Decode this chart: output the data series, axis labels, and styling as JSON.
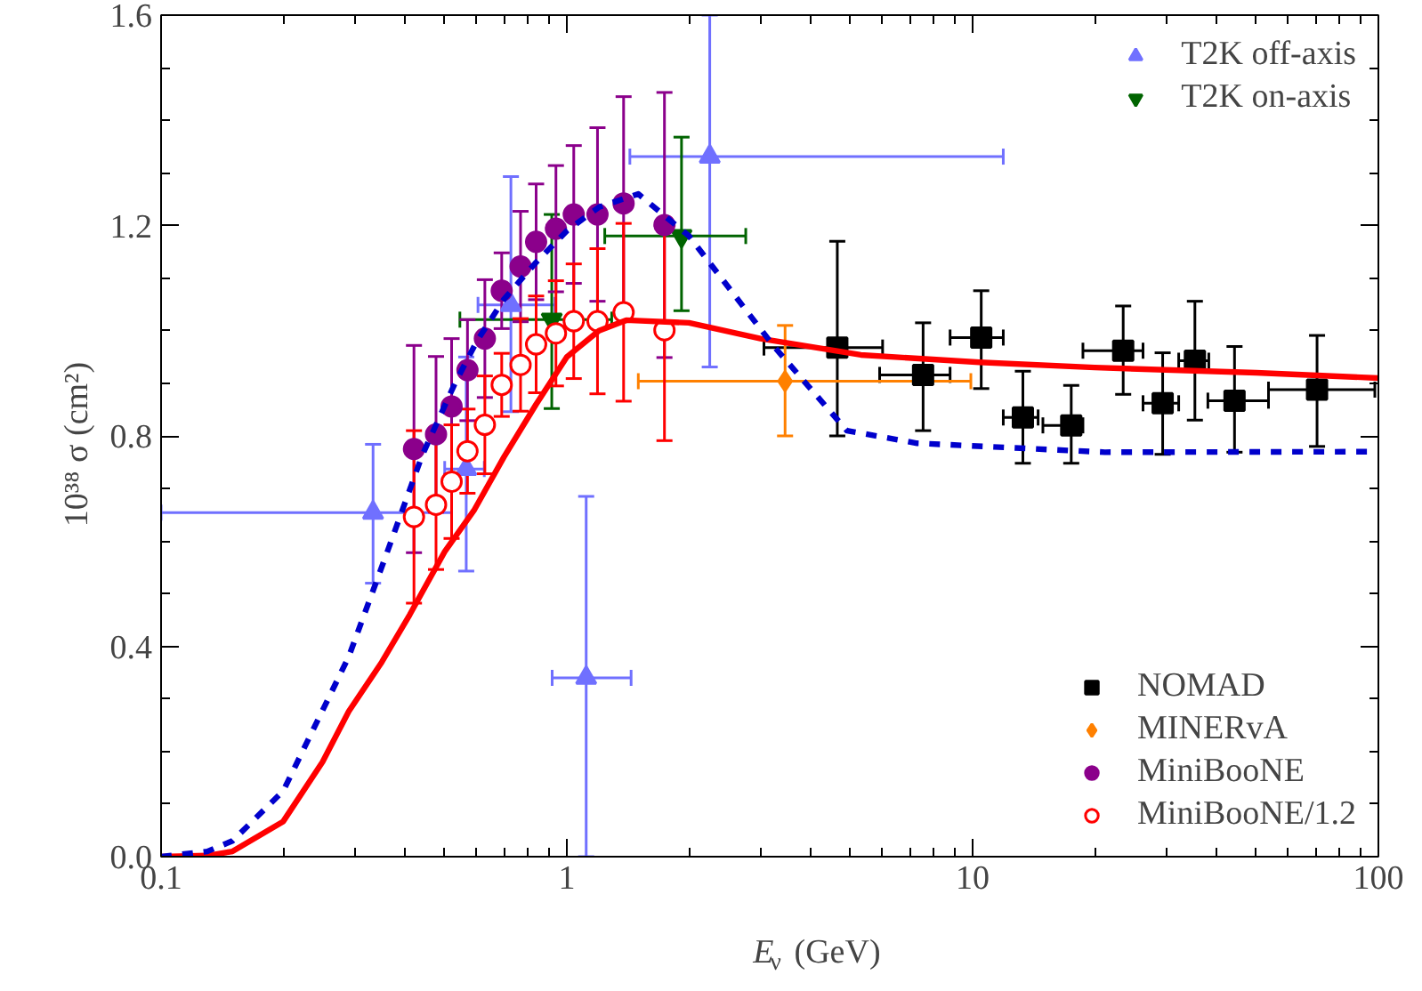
{
  "chart_data": {
    "type": "scatter",
    "xlabel": "E$_{ν}$ (GeV)",
    "ylabel": "10³⁸ σ   (cm²)",
    "log": "x",
    "grid": false,
    "legend": "right",
    "xlim": [
      0.1,
      100
    ],
    "xticks": [
      0.1,
      1,
      10,
      100
    ],
    "ylim": [
      0,
      1.6
    ],
    "yticks": [
      {
        "value": 0,
        "label": "0.0"
      },
      {
        "value": 0.4,
        "label": "0.4"
      },
      {
        "value": 0.8,
        "label": "0.8"
      },
      {
        "value": 1.2,
        "label": "1.2"
      },
      {
        "value": 1.6,
        "label": "1.6"
      }
    ],
    "series": [
      {
        "name": "T2K off-axis",
        "marker": "triangle",
        "color": "#7070ff",
        "x": [
          0.333,
          0.565,
          0.728,
          1.116,
          2.25
        ],
        "values": [
          0.654,
          0.737,
          1.049,
          0.34,
          1.331
        ],
        "errors": [
          [
            0.52,
            0.784
          ],
          [
            0.543,
            0.95
          ],
          [
            0.846,
            1.293
          ],
          [
            0,
            0.685
          ],
          [
            0.931,
            1.6
          ]
        ],
        "xerrors": [
          [
            0.1,
            0.52
          ],
          [
            0.5,
            0.626
          ],
          [
            0.604,
            0.935
          ],
          [
            0.92,
            1.44
          ],
          [
            1.43,
            11.9
          ]
        ]
      },
      {
        "name": "T2K on-axis",
        "color": "#006400",
        "x": [
          0.918,
          1.917
        ],
        "values": [
          1.021,
          1.18
        ],
        "errors": [
          [
            0.852,
            1.221
          ],
          [
            1.038,
            1.368
          ]
        ],
        "xerrors": [
          [
            0.545,
            1.29
          ],
          [
            1.24,
            2.76
          ]
        ]
      },
      {
        "name": "NOMAD",
        "marker": "square",
        "color": "#000000",
        "x": [
          4.64,
          7.55,
          10.5,
          13.3,
          17.5,
          23.5,
          29.4,
          35.3,
          44.2,
          70.6
        ],
        "values": [
          0.968,
          0.916,
          0.987,
          0.835,
          0.82,
          0.962,
          0.862,
          0.943,
          0.867,
          0.888
        ],
        "errors": [
          [
            0.8,
            1.17
          ],
          [
            0.81,
            1.015
          ],
          [
            0.89,
            1.076
          ],
          [
            0.748,
            0.923
          ],
          [
            0.748,
            0.896
          ],
          [
            0.879,
            1.047
          ],
          [
            0.765,
            0.958
          ],
          [
            0.83,
            1.056
          ],
          [
            0.769,
            0.97
          ],
          [
            0.78,
            0.991
          ]
        ],
        "xerrors": [
          [
            3.06,
            6.0
          ],
          [
            5.9,
            8.8
          ],
          [
            8.8,
            11.9
          ],
          [
            11.9,
            14.5
          ],
          [
            14.9,
            18.7
          ],
          [
            18.7,
            26.3
          ],
          [
            26.3,
            32.2
          ],
          [
            32.2,
            38.2
          ],
          [
            38.0,
            53.6
          ],
          [
            53.6,
            98
          ]
        ]
      },
      {
        "name": "MINERvA",
        "marker": "diamond",
        "color": "#ff8000",
        "x": [
          3.45
        ],
        "values": [
          0.904
        ],
        "errors": [
          [
            0.8,
            1.01
          ]
        ],
        "xerrors": [
          [
            1.5,
            9.9
          ]
        ]
      },
      {
        "name": "MiniBooNE",
        "marker": "circle",
        "color": "#8b008b",
        "x": [
          0.42,
          0.476,
          0.52,
          0.569,
          0.628,
          0.691,
          0.769,
          0.84,
          0.94,
          1.04,
          1.19,
          1.38,
          1.74
        ],
        "values": [
          0.775,
          0.803,
          0.856,
          0.925,
          0.985,
          1.076,
          1.122,
          1.169,
          1.194,
          1.221,
          1.221,
          1.242,
          1.201
        ],
        "errors": [
          0.197,
          0.148,
          0.129,
          0.096,
          0.112,
          0.072,
          0.105,
          0.11,
          0.12,
          0.131,
          0.165,
          0.203,
          0.252
        ]
      },
      {
        "name": "MiniBooNE/1.2",
        "marker": "circle_open",
        "color": "#ff0000",
        "x": [
          0.42,
          0.476,
          0.52,
          0.569,
          0.628,
          0.691,
          0.769,
          0.84,
          0.94,
          1.04,
          1.19,
          1.38,
          1.74
        ],
        "values": [
          0.646,
          0.669,
          0.713,
          0.771,
          0.821,
          0.897,
          0.935,
          0.974,
          0.995,
          1.018,
          1.018,
          1.035,
          1.001
        ],
        "errors": [
          0.164,
          0.123,
          0.108,
          0.08,
          0.093,
          0.06,
          0.088,
          0.092,
          0.1,
          0.109,
          0.138,
          0.169,
          0.21
        ]
      },
      {
        "type": "line",
        "line_style": "solid",
        "color": "#ff0000",
        "x": [
          0.1,
          0.13,
          0.15,
          0.2,
          0.25,
          0.29,
          0.35,
          0.41,
          0.5,
          0.59,
          0.7,
          0.84,
          1.0,
          1.2,
          1.4,
          2.0,
          3.0,
          5.3,
          10.4,
          20,
          50,
          100
        ],
        "values": [
          0,
          0.002,
          0.01,
          0.067,
          0.18,
          0.276,
          0.37,
          0.46,
          0.58,
          0.658,
          0.76,
          0.86,
          0.95,
          1.0,
          1.02,
          1.015,
          0.985,
          0.954,
          0.94,
          0.93,
          0.92,
          0.91
        ]
      },
      {
        "type": "line",
        "line_style": "dashed",
        "color": "#0000cc",
        "x": [
          0.1,
          0.13,
          0.15,
          0.2,
          0.29,
          0.36,
          0.44,
          0.53,
          0.6,
          0.7,
          0.84,
          1.0,
          1.2,
          1.5,
          2.0,
          3.24,
          4.9,
          7.3,
          21.2,
          100
        ],
        "values": [
          0,
          0.01,
          0.03,
          0.125,
          0.38,
          0.577,
          0.763,
          0.9,
          0.98,
          1.06,
          1.13,
          1.19,
          1.235,
          1.26,
          1.18,
          0.97,
          0.81,
          0.786,
          0.769,
          0.77
        ]
      }
    ]
  }
}
